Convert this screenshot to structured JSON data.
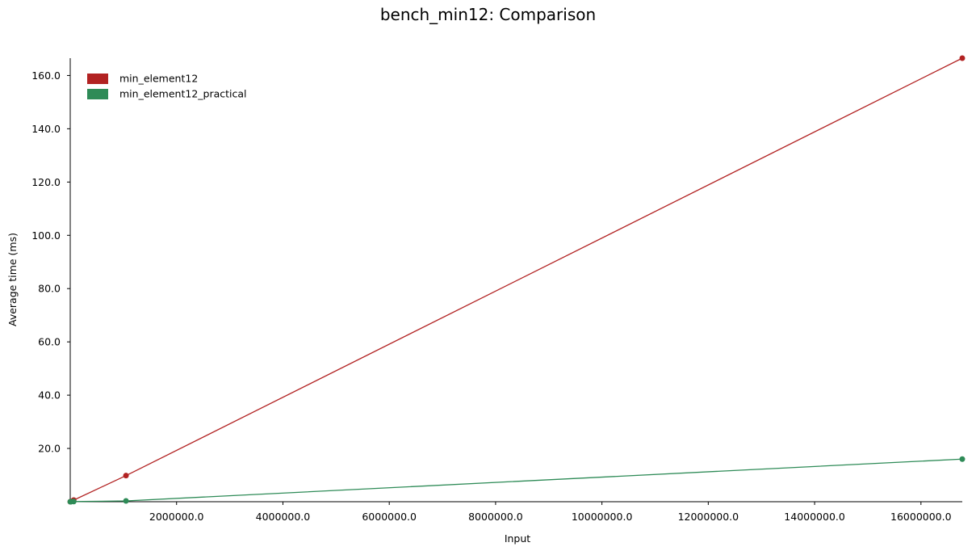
{
  "chart_data": {
    "type": "line",
    "title": "bench_min12: Comparison",
    "xlabel": "Input",
    "ylabel": "Average time (ms)",
    "xlim": [
      0,
      16777216
    ],
    "ylim": [
      0,
      166.5
    ],
    "x_ticks": [
      2000000,
      4000000,
      6000000,
      8000000,
      10000000,
      12000000,
      14000000,
      16000000
    ],
    "x_tick_labels": [
      "2000000.0",
      "4000000.0",
      "6000000.0",
      "8000000.0",
      "10000000.0",
      "12000000.0",
      "14000000.0",
      "16000000.0"
    ],
    "y_ticks": [
      20,
      40,
      60,
      80,
      100,
      120,
      140,
      160
    ],
    "y_tick_labels": [
      "20.0",
      "40.0",
      "60.0",
      "80.0",
      "100.0",
      "120.0",
      "140.0",
      "160.0"
    ],
    "legend_position": "top-left",
    "series": [
      {
        "name": "min_element12",
        "color": "#b22222",
        "x": [
          1024,
          16384,
          65536,
          1048576,
          16777216
        ],
        "y": [
          0.01,
          0.15,
          0.6,
          9.8,
          166.5
        ]
      },
      {
        "name": "min_element12_practical",
        "color": "#2e8b57",
        "x": [
          1024,
          16384,
          65536,
          1048576,
          16777216
        ],
        "y": [
          0.001,
          0.015,
          0.06,
          0.3,
          16.0
        ]
      }
    ]
  }
}
